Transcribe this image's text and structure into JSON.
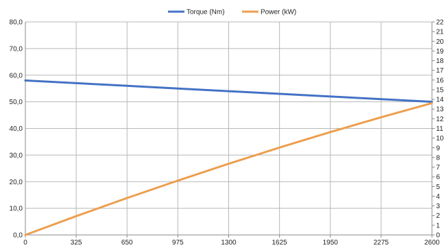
{
  "chart_data": {
    "type": "line",
    "title": "",
    "xlabel": "",
    "ylabel": "",
    "y2label": "",
    "grid": true,
    "legend_position": "top-center",
    "xlim": [
      0,
      2600
    ],
    "ylim": [
      0,
      80
    ],
    "y2lim": [
      0,
      22
    ],
    "x_ticks": [
      "0",
      "325",
      "650",
      "975",
      "1300",
      "1625",
      "1950",
      "2275",
      "2600"
    ],
    "y_ticks": [
      "0,0",
      "10,0",
      "20,0",
      "30,0",
      "40,0",
      "50,0",
      "60,0",
      "70,0",
      "80,0"
    ],
    "y2_ticks": [
      "0",
      "1",
      "2",
      "3",
      "4",
      "5",
      "6",
      "7",
      "8",
      "9",
      "10",
      "11",
      "12",
      "13",
      "14",
      "15",
      "16",
      "17",
      "18",
      "19",
      "20",
      "21",
      "22"
    ],
    "x": [
      0,
      325,
      650,
      975,
      1300,
      1625,
      1950,
      2275,
      2600
    ],
    "series": [
      {
        "name": "Torque (Nm)",
        "axis": "left",
        "color": "#4472C4",
        "values": [
          58.0,
          57.0,
          56.0,
          55.0,
          54.0,
          53.0,
          52.0,
          51.0,
          50.0
        ]
      },
      {
        "name": "Power (kW)",
        "axis": "right",
        "color": "#ED9E4E",
        "values": [
          0.0,
          1.94,
          3.81,
          5.61,
          7.35,
          9.02,
          10.62,
          12.15,
          13.61
        ]
      }
    ]
  }
}
